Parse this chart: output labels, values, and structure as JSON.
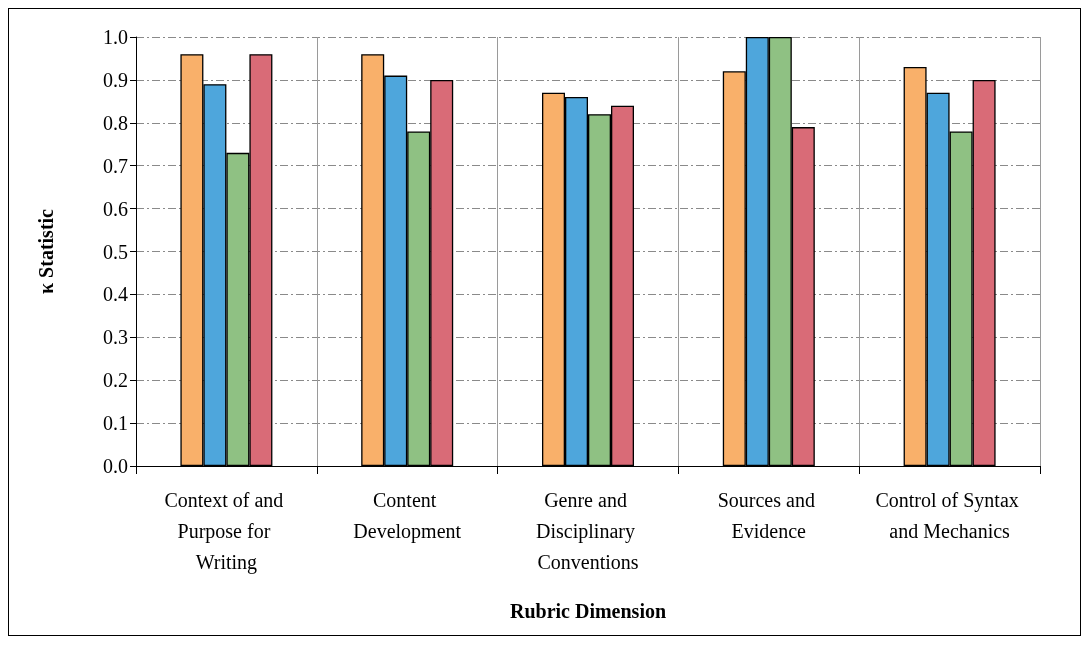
{
  "chart_data": {
    "type": "bar",
    "xlabel": "Rubric Dimension",
    "ylabel": "κ Statistic",
    "categories": [
      "Context of and Purpose for Writing",
      "Content Development",
      "Genre and Disciplinary Conventions",
      "Sources and Evidence",
      "Control of Syntax and Mechanics"
    ],
    "series": [
      {
        "color": "#f9b06a",
        "values": [
          0.96,
          0.96,
          0.87,
          0.92,
          0.93
        ]
      },
      {
        "color": "#4ea6dc",
        "values": [
          0.89,
          0.91,
          0.86,
          1.0,
          0.87
        ]
      },
      {
        "color": "#8fc183",
        "values": [
          0.73,
          0.78,
          0.82,
          1.0,
          0.78
        ]
      },
      {
        "color": "#d96b77",
        "values": [
          0.96,
          0.9,
          0.84,
          0.79,
          0.9
        ]
      }
    ],
    "ylim": [
      0,
      1
    ],
    "yticks": [
      {
        "value": 0,
        "label": "0.0"
      },
      0.1,
      0.2,
      0.3,
      0.4,
      0.5,
      0.6,
      0.7,
      0.8,
      0.9,
      {
        "value": 1,
        "label": "1.0"
      }
    ],
    "grid": true
  }
}
